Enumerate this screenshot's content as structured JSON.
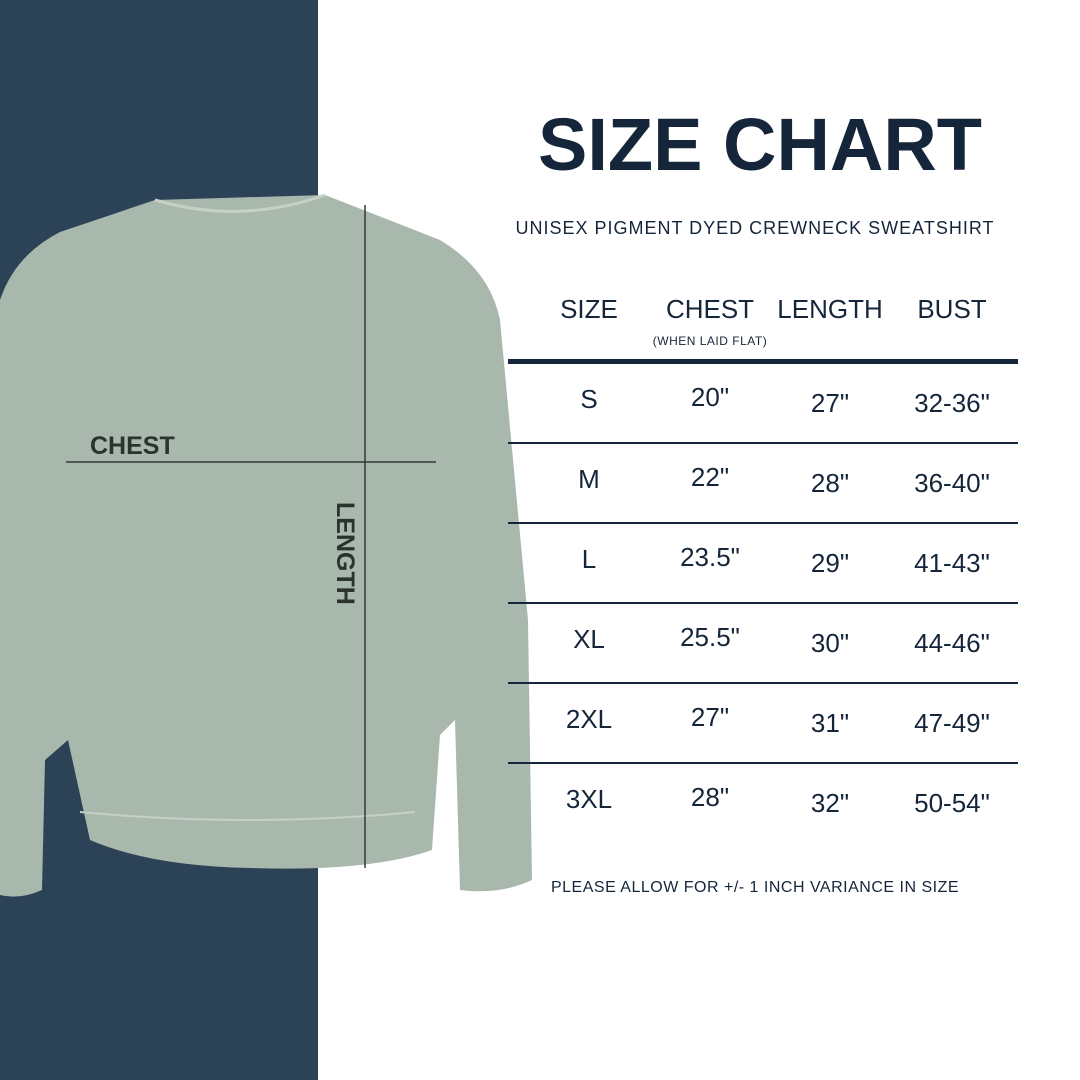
{
  "title": "SIZE CHART",
  "subtitle": "UNISEX PIGMENT DYED CREWNECK SWEATSHIRT",
  "colors": {
    "navy": "#2c4257",
    "shirt": "#a9b8ad",
    "text": "#15253a"
  },
  "image": {
    "chest_label": "CHEST",
    "length_label": "LENGTH"
  },
  "table": {
    "headers": [
      "SIZE",
      "CHEST",
      "LENGTH",
      "BUST"
    ],
    "chest_note": "(WHEN LAID FLAT)",
    "rows": [
      [
        "S",
        "20\"",
        "27\"",
        "32-36\""
      ],
      [
        "M",
        "22\"",
        "28\"",
        "36-40\""
      ],
      [
        "L",
        "23.5\"",
        "29\"",
        "41-43\""
      ],
      [
        "XL",
        "25.5\"",
        "30\"",
        "44-46\""
      ],
      [
        "2XL",
        "27\"",
        "31\"",
        "47-49\""
      ],
      [
        "3XL",
        "28\"",
        "32\"",
        "50-54\""
      ]
    ]
  },
  "note": "PLEASE ALLOW FOR +/- 1 INCH VARIANCE IN SIZE"
}
